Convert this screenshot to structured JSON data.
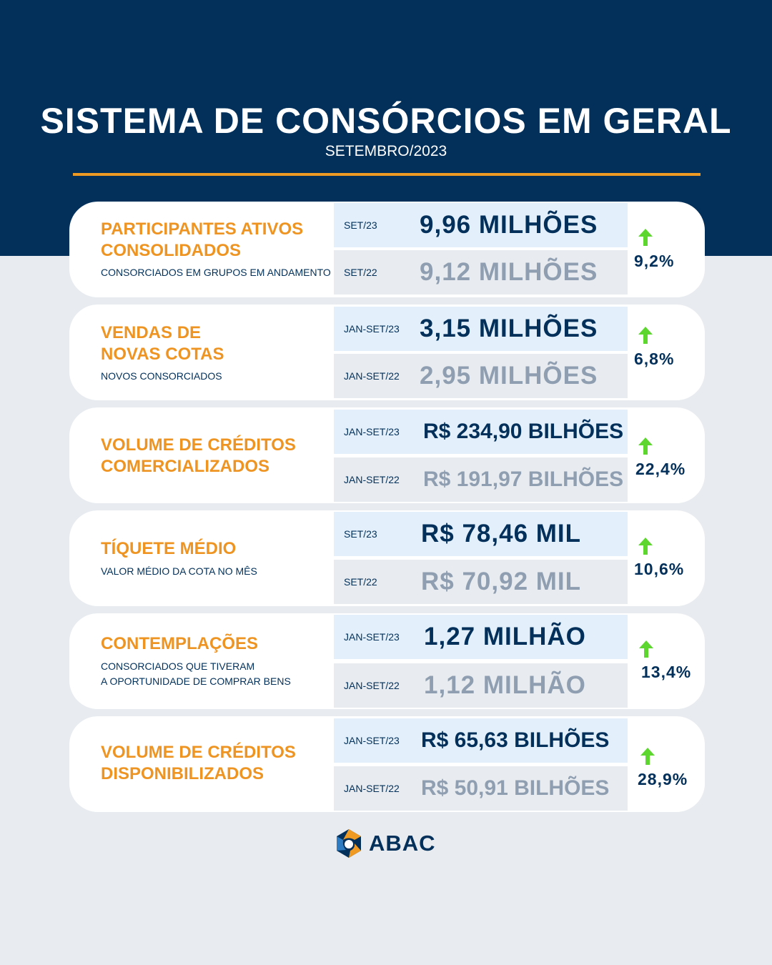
{
  "header": {
    "title": "SISTEMA DE CONSÓRCIOS EM GERAL",
    "subtitle": "SETEMBRO/2023"
  },
  "colors": {
    "navy": "#02305a",
    "orange": "#ee9422",
    "arrow_green": "#5ed630",
    "current_row_bg": "#e3f0fb",
    "previous_row_bg": "#e8ebef",
    "previous_value_text": "#8f9fb1"
  },
  "cards": [
    {
      "label_line1": "PARTICIPANTES ATIVOS",
      "label_line2": "CONSOLIDADOS",
      "desc_line1": "CONSORCIADOS EM GRUPOS EM ANDAMENTO",
      "desc_line2": "",
      "current": {
        "period": "SET/23",
        "value": "9,96 MILHÕES"
      },
      "previous": {
        "period": "SET/22",
        "value": "9,12 MILHÕES"
      },
      "change": "9,2%",
      "trend_icon": "arrow-up-icon"
    },
    {
      "label_line1": "VENDAS DE",
      "label_line2": "NOVAS COTAS",
      "desc_line1": "NOVOS CONSORCIADOS",
      "desc_line2": "",
      "current": {
        "period": "JAN-SET/23",
        "value": "3,15 MILHÕES"
      },
      "previous": {
        "period": "JAN-SET/22",
        "value": "2,95 MILHÕES"
      },
      "change": "6,8%",
      "trend_icon": "arrow-up-icon"
    },
    {
      "label_line1": "VOLUME DE CRÉDITOS",
      "label_line2": "COMERCIALIZADOS",
      "desc_line1": "",
      "desc_line2": "",
      "current": {
        "period": "JAN-SET/23",
        "value": "R$ 234,90 BILHÕES"
      },
      "previous": {
        "period": "JAN-SET/22",
        "value": "R$ 191,97 BILHÕES"
      },
      "change": "22,4%",
      "trend_icon": "arrow-up-icon"
    },
    {
      "label_line1": "TÍQUETE MÉDIO",
      "label_line2": "",
      "desc_line1": "VALOR MÉDIO DA COTA NO MÊS",
      "desc_line2": "",
      "current": {
        "period": "SET/23",
        "value": "R$ 78,46 MIL"
      },
      "previous": {
        "period": "SET/22",
        "value": "R$ 70,92 MIL"
      },
      "change": "10,6%",
      "trend_icon": "arrow-up-icon"
    },
    {
      "label_line1": "CONTEMPLAÇÕES",
      "label_line2": "",
      "desc_line1": "CONSORCIADOS QUE TIVERAM",
      "desc_line2": "A OPORTUNIDADE DE COMPRAR BENS",
      "current": {
        "period": "JAN-SET/23",
        "value": "1,27 MILHÃO"
      },
      "previous": {
        "period": "JAN-SET/22",
        "value": "1,12 MILHÃO"
      },
      "change": "13,4%",
      "trend_icon": "arrow-up-icon"
    },
    {
      "label_line1": "VOLUME DE CRÉDITOS",
      "label_line2": "DISPONIBILIZADOS",
      "desc_line1": "",
      "desc_line2": "",
      "current": {
        "period": "JAN-SET/23",
        "value": "R$ 65,63 BILHÕES"
      },
      "previous": {
        "period": "JAN-SET/22",
        "value": "R$ 50,91 BILHÕES"
      },
      "change": "28,9%",
      "trend_icon": "arrow-up-icon"
    }
  ],
  "footer": {
    "logo_text": "ABAC",
    "logo_icon": "abac-logo-icon"
  }
}
